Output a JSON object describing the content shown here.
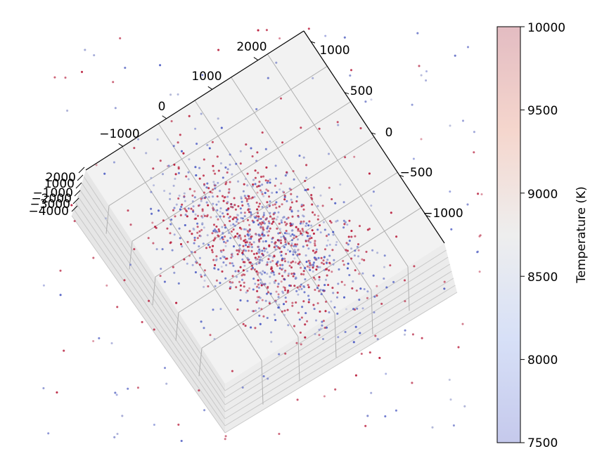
{
  "chart_data": {
    "type": "scatter",
    "projection": "3d",
    "title": "",
    "x_axis": {
      "ticks": [
        "−1000",
        "0",
        "1000",
        "2000"
      ],
      "range": [
        -1500,
        2500
      ]
    },
    "y_axis": {
      "ticks": [
        "1000",
        "500",
        "0",
        "−500",
        "−1000"
      ],
      "range": [
        1200,
        -1300
      ]
    },
    "z_axis": {
      "ticks": [
        "2000",
        "1000",
        "−1000",
        "−2000",
        "−3000",
        "−4000"
      ],
      "range": [
        -4000,
        2000
      ]
    },
    "point_count_approx": 5000,
    "distribution": "dense central cluster with scattered outliers",
    "colormap": "coolwarm",
    "alpha": 0.5,
    "colorbar": {
      "label": "Temperature (K)",
      "ticks": [
        "7500",
        "8000",
        "8500",
        "9000",
        "9500",
        "10000"
      ],
      "range": [
        7500,
        10000
      ]
    },
    "colors": {
      "cold": "#3b4cc0",
      "neutral": "#dddddd",
      "hot": "#b40426",
      "pane": "#f2f2f2",
      "grid": "#b0b0b0"
    }
  }
}
